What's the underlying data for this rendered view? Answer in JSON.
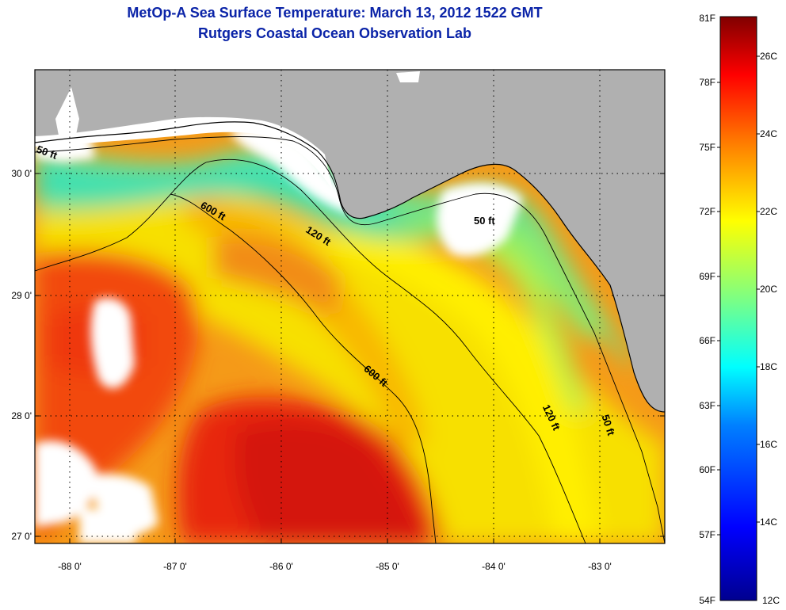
{
  "header": {
    "title": "MetOp-A Sea Surface Temperature:  March 13, 2012 1522 GMT",
    "subtitle": "Rutgers Coastal Ocean Observation Lab"
  },
  "map": {
    "lon_ticks": [
      "-88 0'",
      "-87 0'",
      "-86 0'",
      "-85 0'",
      "-84 0'",
      "-83 0'"
    ],
    "lat_ticks": [
      "30 0'",
      "29 0'",
      "28 0'",
      "27 0'"
    ],
    "contours": [
      {
        "depth": "50 ft",
        "labels": [
          "50 ft",
          "50 ft",
          "50 ft"
        ]
      },
      {
        "depth": "120 ft",
        "labels": [
          "120 ft",
          "120 ft"
        ]
      },
      {
        "depth": "600 ft",
        "labels": [
          "600 ft",
          "600 ft"
        ]
      }
    ],
    "colors": {
      "land": "#b0b0b0",
      "cloud": "#ffffff",
      "grid": "#000000"
    }
  },
  "colorbar": {
    "fahrenheit": [
      "81F",
      "78F",
      "75F",
      "72F",
      "69F",
      "66F",
      "63F",
      "60F",
      "57F",
      "54F"
    ],
    "celsius": [
      "26C",
      "24C",
      "22C",
      "20C",
      "18C",
      "16C",
      "14C",
      "12C"
    ],
    "stops": [
      "#00008f",
      "#0000ff",
      "#0080ff",
      "#00ffff",
      "#80ff80",
      "#ffff00",
      "#ff8000",
      "#ff0000",
      "#800000"
    ]
  }
}
